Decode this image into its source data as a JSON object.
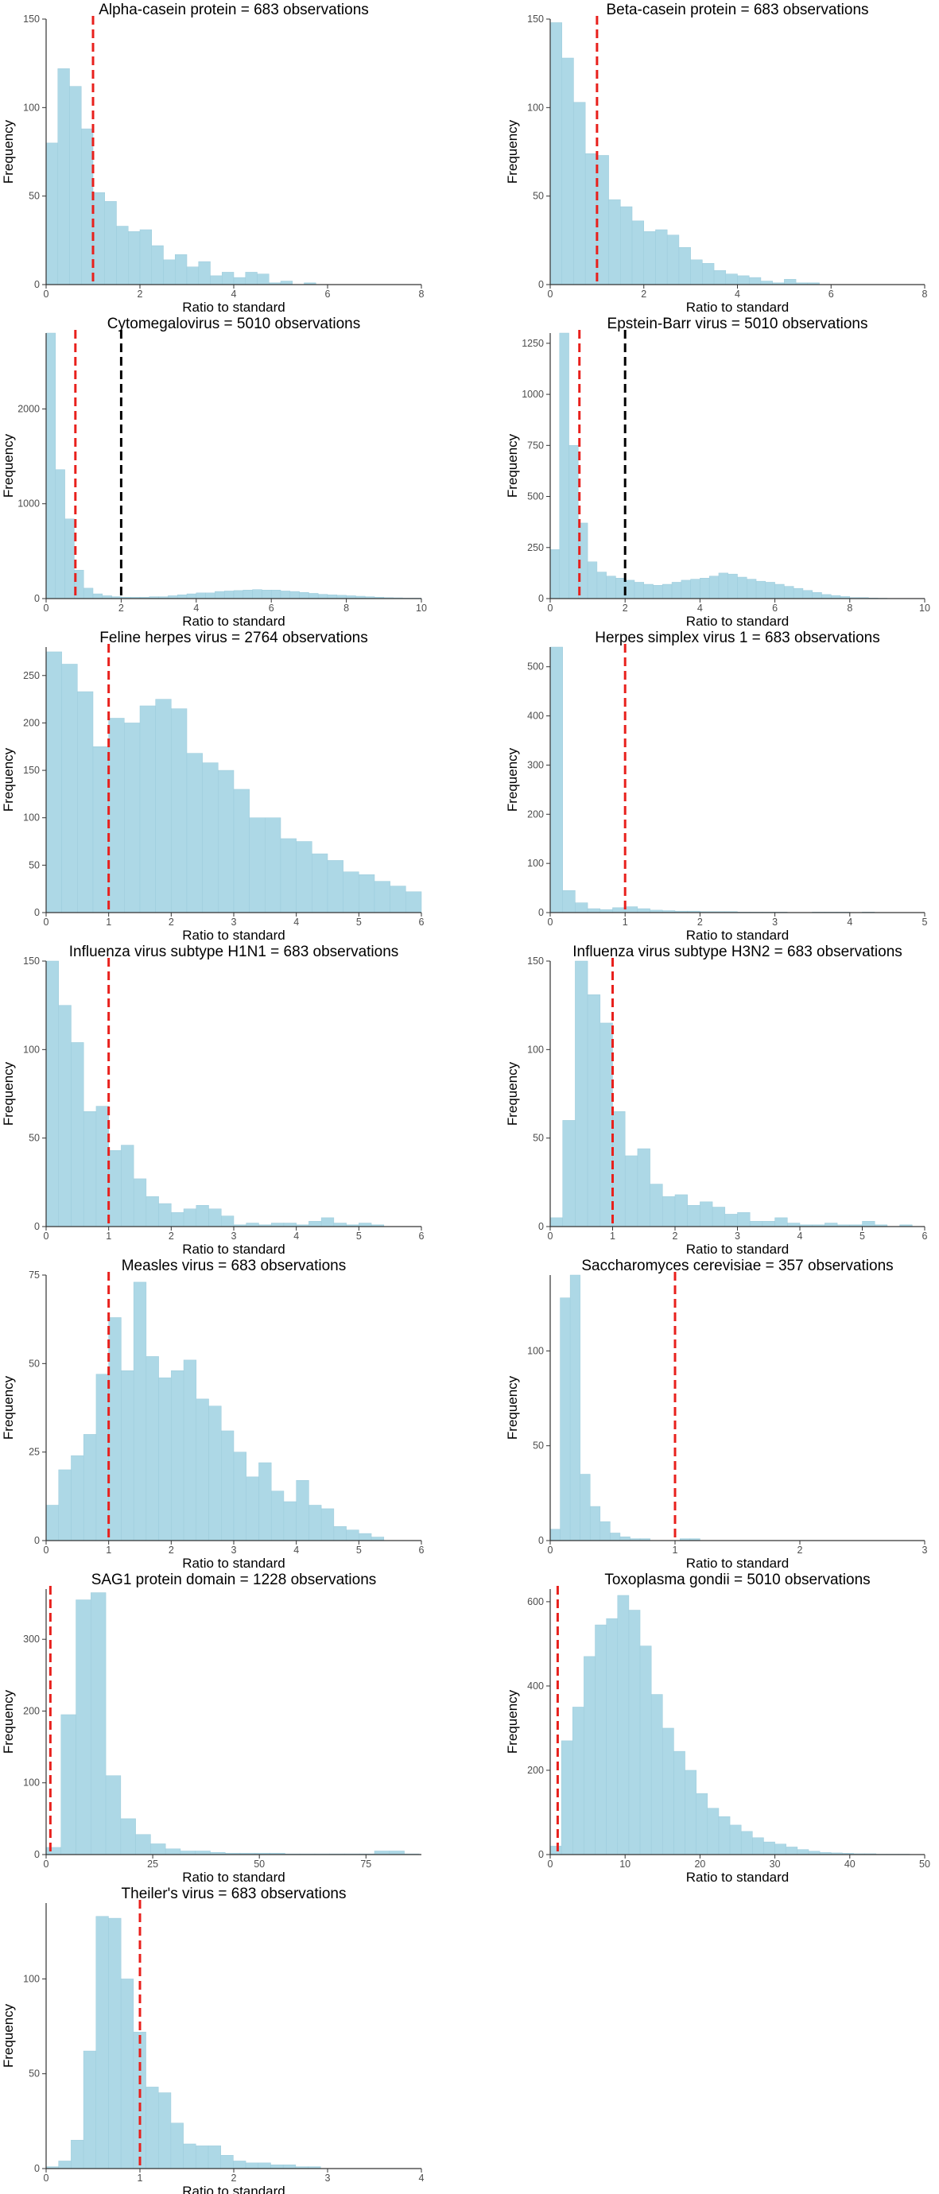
{
  "chart_data": [
    {
      "type": "bar",
      "title": "Alpha-casein protein = 683 observations",
      "xlabel": "Ratio to standard",
      "ylabel": "Frequency",
      "xlim": [
        0,
        8
      ],
      "ylim": [
        0,
        150
      ],
      "xticks": [
        0,
        2,
        4,
        6,
        8
      ],
      "yticks": [
        0,
        50,
        100,
        150
      ],
      "bin_width": 0.25,
      "values": [
        80,
        122,
        112,
        88,
        52,
        47,
        33,
        30,
        31,
        22,
        14,
        17,
        10,
        13,
        5,
        7,
        4,
        7,
        6,
        1,
        2,
        0,
        1,
        0,
        0,
        0,
        0,
        0,
        0,
        0,
        0,
        0
      ],
      "ref_red": 1.0,
      "ref_black": null
    },
    {
      "type": "bar",
      "title": "Beta-casein protein = 683 observations",
      "xlabel": "Ratio to standard",
      "ylabel": "Frequency",
      "xlim": [
        0,
        8
      ],
      "ylim": [
        0,
        150
      ],
      "xticks": [
        0,
        2,
        4,
        6,
        8
      ],
      "yticks": [
        0,
        50,
        100,
        150
      ],
      "bin_width": 0.25,
      "values": [
        148,
        128,
        103,
        74,
        73,
        48,
        44,
        36,
        30,
        31,
        28,
        21,
        14,
        12,
        8,
        6,
        5,
        4,
        2,
        1,
        3,
        1,
        1,
        0,
        0,
        0,
        0,
        0,
        0,
        0,
        0,
        0
      ],
      "ref_red": 1.0,
      "ref_black": null
    },
    {
      "type": "bar",
      "title": "Cytomegalovirus = 5010 observations",
      "xlabel": "Ratio to standard",
      "ylabel": "Frequency",
      "xlim": [
        0,
        10
      ],
      "ylim": [
        0,
        2800
      ],
      "xticks": [
        0,
        2,
        4,
        6,
        8,
        10
      ],
      "yticks": [
        0,
        1000,
        2000
      ],
      "bin_width": 0.25,
      "values": [
        2800,
        1360,
        840,
        300,
        110,
        50,
        30,
        20,
        15,
        15,
        15,
        20,
        20,
        30,
        40,
        50,
        60,
        60,
        75,
        80,
        85,
        90,
        95,
        90,
        90,
        80,
        75,
        65,
        55,
        45,
        40,
        35,
        30,
        25,
        20,
        15,
        10,
        8,
        5,
        5
      ],
      "ref_red": 0.78,
      "ref_black": 2.0
    },
    {
      "type": "bar",
      "title": "Epstein-Barr virus = 5010 observations",
      "xlabel": "Ratio to standard",
      "ylabel": "Frequency",
      "xlim": [
        0,
        10
      ],
      "ylim": [
        0,
        1300
      ],
      "xticks": [
        0,
        2,
        4,
        6,
        8,
        10
      ],
      "yticks": [
        0,
        250,
        500,
        750,
        1000,
        1250
      ],
      "bin_width": 0.25,
      "values": [
        240,
        1300,
        750,
        370,
        180,
        130,
        110,
        100,
        90,
        80,
        70,
        65,
        70,
        80,
        90,
        95,
        100,
        110,
        125,
        120,
        105,
        95,
        85,
        80,
        70,
        60,
        50,
        40,
        30,
        20,
        15,
        10,
        5,
        5,
        3,
        2,
        1,
        1,
        1,
        1
      ],
      "ref_red": 0.78,
      "ref_black": 2.0
    },
    {
      "type": "bar",
      "title": "Feline herpes virus = 2764 observations",
      "xlabel": "Ratio to standard",
      "ylabel": "Frequency",
      "xlim": [
        0,
        6
      ],
      "ylim": [
        0,
        280
      ],
      "xticks": [
        0,
        1,
        2,
        3,
        4,
        5,
        6
      ],
      "yticks": [
        0,
        50,
        100,
        150,
        200,
        250
      ],
      "bin_width": 0.25,
      "values": [
        275,
        262,
        233,
        175,
        205,
        200,
        218,
        225,
        215,
        168,
        158,
        150,
        130,
        100,
        100,
        78,
        75,
        62,
        55,
        43,
        40,
        33,
        28,
        22,
        12,
        10,
        4,
        3
      ],
      "ref_red": 1.0,
      "ref_black": null
    },
    {
      "type": "bar",
      "title": "Herpes simplex virus 1 = 683 observations",
      "xlabel": "Ratio to standard",
      "ylabel": "Frequency",
      "xlim": [
        0,
        5
      ],
      "ylim": [
        0,
        540
      ],
      "xticks": [
        0,
        1,
        2,
        3,
        4,
        5
      ],
      "yticks": [
        0,
        100,
        200,
        300,
        400,
        500
      ],
      "bin_width": 0.1666,
      "values": [
        540,
        45,
        20,
        8,
        6,
        10,
        12,
        8,
        5,
        4,
        3,
        3,
        2,
        2,
        2,
        1,
        1,
        1,
        1,
        0,
        0,
        1,
        1,
        1,
        0,
        1,
        0,
        0,
        0,
        0
      ],
      "ref_red": 1.0,
      "ref_black": null
    },
    {
      "type": "bar",
      "title": "Influenza virus subtype H1N1 = 683 observations",
      "xlabel": "Ratio to standard",
      "ylabel": "Frequency",
      "xlim": [
        0,
        6
      ],
      "ylim": [
        0,
        150
      ],
      "xticks": [
        0,
        1,
        2,
        3,
        4,
        5,
        6
      ],
      "yticks": [
        0,
        50,
        100,
        150
      ],
      "bin_width": 0.2,
      "values": [
        150,
        125,
        104,
        65,
        68,
        43,
        46,
        27,
        17,
        13,
        8,
        10,
        12,
        10,
        6,
        1,
        2,
        1,
        2,
        2,
        1,
        3,
        5,
        2,
        1,
        2,
        1,
        0,
        0,
        0
      ],
      "ref_red": 1.0,
      "ref_black": null
    },
    {
      "type": "bar",
      "title": "Influenza virus subtype H3N2 = 683 observations",
      "xlabel": "Ratio to standard",
      "ylabel": "Frequency",
      "xlim": [
        0,
        6
      ],
      "ylim": [
        0,
        150
      ],
      "xticks": [
        0,
        1,
        2,
        3,
        4,
        5,
        6
      ],
      "yticks": [
        0,
        50,
        100,
        150
      ],
      "bin_width": 0.2,
      "values": [
        5,
        60,
        152,
        131,
        115,
        65,
        40,
        44,
        24,
        17,
        18,
        12,
        14,
        11,
        7,
        8,
        3,
        3,
        5,
        2,
        1,
        1,
        2,
        1,
        1,
        3,
        1,
        0,
        1,
        0
      ],
      "ref_red": 1.0,
      "ref_black": null
    },
    {
      "type": "bar",
      "title": "Measles virus = 683 observations",
      "xlabel": "Ratio to standard",
      "ylabel": "Frequency",
      "xlim": [
        0,
        6
      ],
      "ylim": [
        0,
        75
      ],
      "xticks": [
        0,
        1,
        2,
        3,
        4,
        5,
        6
      ],
      "yticks": [
        0,
        25,
        50,
        75
      ],
      "bin_width": 0.2,
      "values": [
        10,
        20,
        24,
        30,
        47,
        63,
        48,
        73,
        52,
        46,
        48,
        51,
        40,
        38,
        31,
        25,
        18,
        22,
        14,
        11,
        17,
        10,
        9,
        4,
        3,
        2,
        1,
        0,
        0,
        0
      ],
      "ref_red": 1.0,
      "ref_black": null
    },
    {
      "type": "bar",
      "title": "Saccharomyces cerevisiae = 357 observations",
      "xlabel": "Ratio to standard",
      "ylabel": "Frequency",
      "xlim": [
        0,
        3
      ],
      "ylim": [
        0,
        140
      ],
      "xticks": [
        0,
        1,
        2,
        3
      ],
      "yticks": [
        0,
        50,
        100
      ],
      "bin_width": 0.08,
      "values": [
        6,
        128,
        140,
        35,
        18,
        10,
        4,
        2,
        1,
        1,
        0,
        0,
        0,
        1,
        1,
        0,
        0,
        0,
        0,
        0,
        0,
        0,
        0,
        0,
        0,
        0,
        0,
        0,
        0,
        0
      ],
      "ref_red": 1.0,
      "ref_black": null
    },
    {
      "type": "bar",
      "title": "SAG1 protein domain = 1228 observations",
      "xlabel": "Ratio to standard",
      "ylabel": "Frequency",
      "xlim": [
        0,
        88
      ],
      "ylim": [
        0,
        370
      ],
      "xticks": [
        0,
        25,
        50,
        75
      ],
      "yticks": [
        0,
        100,
        200,
        300
      ],
      "bin_width": 3.5,
      "values": [
        10,
        195,
        355,
        365,
        110,
        50,
        28,
        15,
        8,
        5,
        5,
        3,
        2,
        2,
        2,
        2,
        1,
        1,
        1,
        1,
        1,
        1,
        5,
        5,
        1
      ],
      "ref_red": 1.0,
      "ref_black": null
    },
    {
      "type": "bar",
      "title": "Toxoplasma gondii = 5010 observations",
      "xlabel": "Ratio to standard",
      "ylabel": "Frequency",
      "xlim": [
        0,
        50
      ],
      "ylim": [
        0,
        630
      ],
      "xticks": [
        0,
        10,
        20,
        30,
        40,
        50
      ],
      "yticks": [
        0,
        200,
        400,
        600
      ],
      "bin_width": 1.5,
      "values": [
        20,
        270,
        350,
        470,
        545,
        560,
        615,
        580,
        495,
        380,
        300,
        245,
        200,
        145,
        110,
        90,
        70,
        55,
        40,
        30,
        25,
        18,
        12,
        8,
        5,
        4,
        3,
        2,
        2,
        1,
        1,
        1,
        0
      ],
      "ref_red": 1.0,
      "ref_black": null
    },
    {
      "type": "bar",
      "title": "Theiler's virus = 683 observations",
      "xlabel": "Ratio to standard",
      "ylabel": "Frequency",
      "xlim": [
        0,
        4
      ],
      "ylim": [
        0,
        140
      ],
      "xticks": [
        0,
        1,
        2,
        3,
        4
      ],
      "yticks": [
        0,
        50,
        100
      ],
      "bin_width": 0.133,
      "values": [
        1,
        4,
        15,
        62,
        133,
        132,
        100,
        72,
        43,
        40,
        24,
        13,
        12,
        12,
        7,
        4,
        3,
        3,
        2,
        2,
        1,
        1,
        0,
        0,
        0,
        0,
        0,
        0,
        0,
        0
      ],
      "ref_red": 1.0,
      "ref_black": null
    }
  ]
}
